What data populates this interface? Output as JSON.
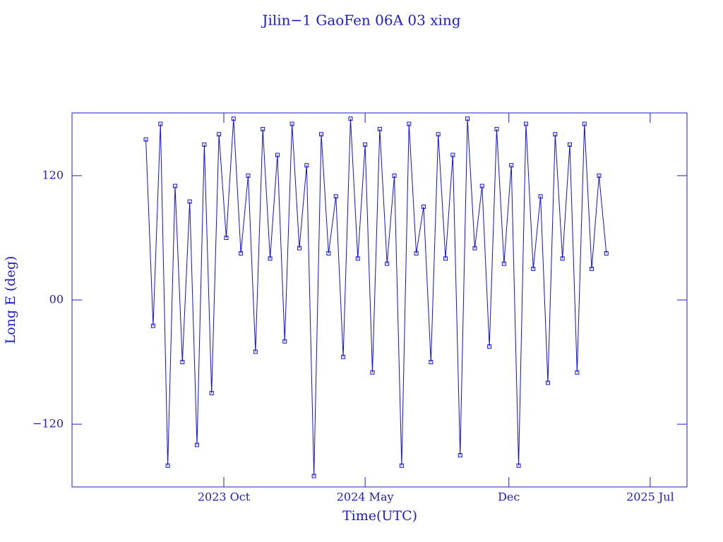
{
  "chart_data": {
    "type": "line",
    "title": "Jilin−1 GaoFen 06A 03 xing",
    "x_label": "Time(UTC)",
    "y_label": "Long E (deg)",
    "xlim": [
      2023.127,
      2025.651
    ],
    "ylim": [
      -180.6,
      180.6
    ],
    "xticks": [
      {
        "value": 2023.75,
        "label": "2023 Oct"
      },
      {
        "value": 2024.33,
        "label": "2024 May"
      },
      {
        "value": 2024.92,
        "label": "Dec"
      },
      {
        "value": 2025.5,
        "label": "2025 Jul"
      }
    ],
    "yticks": [
      {
        "value": -120,
        "label": "−120"
      },
      {
        "value": 0,
        "label": "00"
      },
      {
        "value": 120,
        "label": "120"
      }
    ],
    "grid": false,
    "series": [
      {
        "name": "Long E",
        "color": "#1010e0",
        "x": [
          2023.43,
          2023.46,
          2023.49,
          2023.52,
          2023.55,
          2023.58,
          2023.61,
          2023.64,
          2023.67,
          2023.7,
          2023.73,
          2023.76,
          2023.79,
          2023.82,
          2023.85,
          2023.88,
          2023.91,
          2023.94,
          2023.97,
          2024.0,
          2024.03,
          2024.06,
          2024.09,
          2024.12,
          2024.15,
          2024.18,
          2024.21,
          2024.24,
          2024.27,
          2024.3,
          2024.33,
          2024.36,
          2024.39,
          2024.42,
          2024.45,
          2024.48,
          2024.51,
          2024.54,
          2024.57,
          2024.6,
          2024.63,
          2024.66,
          2024.69,
          2024.72,
          2024.75,
          2024.78,
          2024.81,
          2024.84,
          2024.87,
          2024.9,
          2024.93,
          2024.96,
          2024.99,
          2025.02,
          2025.05,
          2025.08,
          2025.11,
          2025.14,
          2025.17,
          2025.2,
          2025.23,
          2025.26,
          2025.29,
          2025.32
        ],
        "values": [
          155,
          -25,
          170,
          -160,
          110,
          -60,
          95,
          -140,
          150,
          -90,
          160,
          60,
          175,
          45,
          120,
          -50,
          165,
          40,
          140,
          -40,
          170,
          50,
          130,
          -170,
          160,
          45,
          100,
          -55,
          175,
          40,
          150,
          -70,
          165,
          35,
          120,
          -160,
          170,
          45,
          90,
          -60,
          160,
          40,
          140,
          -150,
          175,
          50,
          110,
          -45,
          165,
          35,
          130,
          -160,
          170,
          30,
          100,
          -80,
          160,
          40,
          150,
          -70,
          170,
          30,
          120,
          45
        ]
      }
    ]
  }
}
